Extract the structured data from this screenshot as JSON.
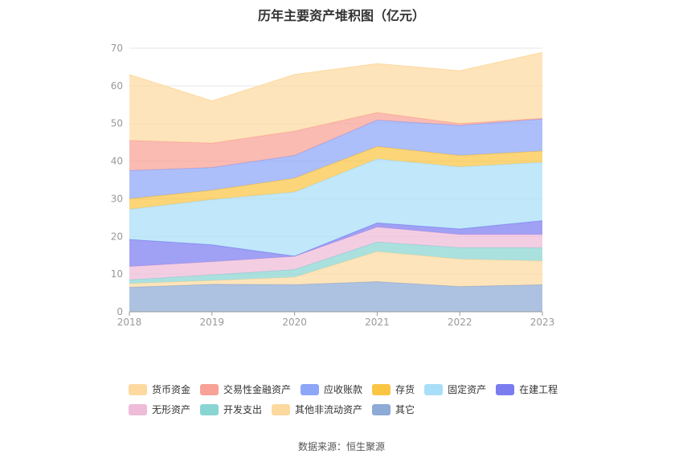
{
  "chart_data": {
    "type": "area",
    "stacked": true,
    "title": "历年主要资产堆积图（亿元）",
    "x": [
      "2018",
      "2019",
      "2020",
      "2021",
      "2022",
      "2023"
    ],
    "ylim": [
      0,
      70
    ],
    "yticks": [
      0,
      10,
      20,
      30,
      40,
      50,
      60,
      70
    ],
    "grid": true,
    "legend_position": "bottom",
    "series": [
      {
        "name": "其它",
        "color": "#8eaad6",
        "values": [
          6.5,
          7.3,
          7.2,
          8.0,
          6.7,
          7.2
        ]
      },
      {
        "name": "其他非流动资产",
        "color": "#fdd9a0",
        "values": [
          1.0,
          1.0,
          2.0,
          8.0,
          7.3,
          6.3
        ]
      },
      {
        "name": "开发支出",
        "color": "#89d5d3",
        "values": [
          1.0,
          1.5,
          2.0,
          2.5,
          3.0,
          3.5
        ]
      },
      {
        "name": "无形资产",
        "color": "#eebbd8",
        "values": [
          3.5,
          3.5,
          3.5,
          4.0,
          3.5,
          3.5
        ]
      },
      {
        "name": "在建工程",
        "color": "#7b7cf0",
        "values": [
          7.2,
          4.5,
          0.1,
          1.1,
          1.5,
          3.7
        ]
      },
      {
        "name": "固定资产",
        "color": "#a9def8",
        "values": [
          8.0,
          12.0,
          17.0,
          17.0,
          16.5,
          15.5
        ]
      },
      {
        "name": "存货",
        "color": "#fbc544",
        "values": [
          2.8,
          2.5,
          3.7,
          3.3,
          3.0,
          3.0
        ]
      },
      {
        "name": "应收账款",
        "color": "#8ea6f8",
        "values": [
          7.5,
          6.0,
          6.0,
          7.0,
          8.0,
          8.5
        ]
      },
      {
        "name": "交易性金融资产",
        "color": "#f8a196",
        "values": [
          8.0,
          6.5,
          6.5,
          2.0,
          0.5,
          0.2
        ]
      },
      {
        "name": "货币资金",
        "color": "#fdd9a0",
        "values": [
          17.5,
          11.2,
          15.0,
          13.0,
          14.0,
          17.5
        ]
      }
    ],
    "legend": {
      "rows": [
        [
          {
            "label": "货币资金",
            "color": "#fdd9a0"
          },
          {
            "label": "交易性金融资产",
            "color": "#f8a196"
          },
          {
            "label": "应收账款",
            "color": "#8ea6f8"
          },
          {
            "label": "存货",
            "color": "#fbc544"
          },
          {
            "label": "固定资产",
            "color": "#a9def8"
          },
          {
            "label": "在建工程",
            "color": "#7b7cf0"
          }
        ],
        [
          {
            "label": "无形资产",
            "color": "#eebbd8"
          },
          {
            "label": "开发支出",
            "color": "#89d5d3"
          },
          {
            "label": "其他非流动资产",
            "color": "#fdd9a0"
          },
          {
            "label": "其它",
            "color": "#8eaad6"
          }
        ]
      ]
    }
  },
  "source": "数据来源：恒生聚源"
}
